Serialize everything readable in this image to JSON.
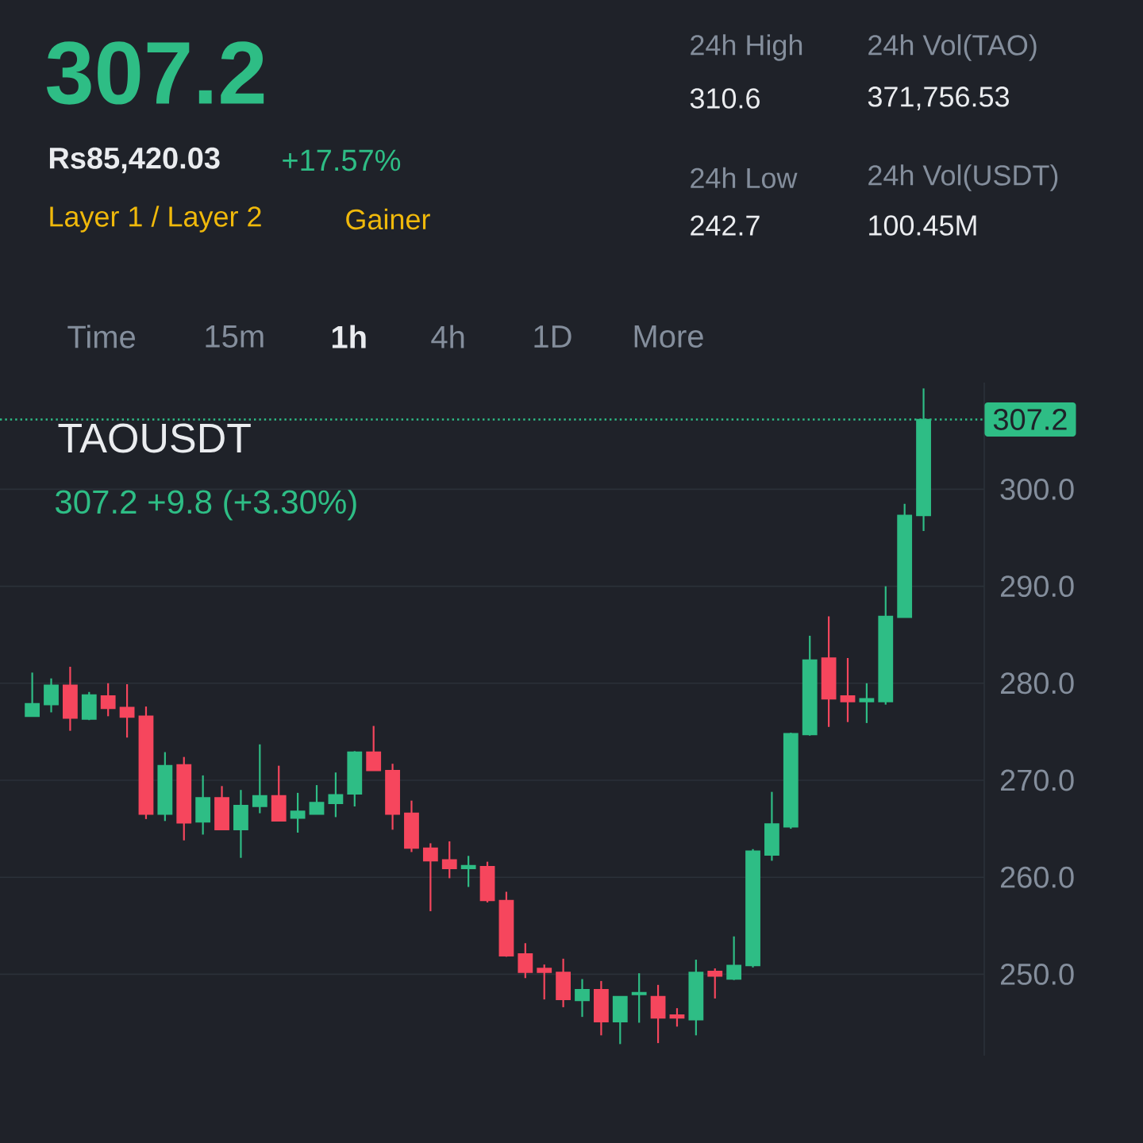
{
  "chart_data": {
    "type": "candlestick",
    "title": "TAOUSDT",
    "subtitle": "307.2  +9.8 (+3.30%)",
    "annotations": [
      "307.2",
      "Rs85,420.03",
      "+17.57%",
      "Layer 1 / Layer 2",
      "Gainer",
      "24h High",
      "310.6",
      "24h Vol(TAO)",
      "371,756.53",
      "24h Low",
      "242.7",
      "24h Vol(USDT)",
      "100.45M",
      "Time",
      "15m",
      "1h",
      "4h",
      "1D",
      "More"
    ],
    "categories": [
      null,
      null,
      null,
      null,
      null,
      null,
      null,
      null,
      null,
      null,
      null,
      null,
      null,
      null,
      null,
      null,
      null,
      null,
      null,
      null,
      null,
      null,
      null,
      null,
      null,
      null,
      null,
      null,
      null,
      null,
      null,
      null,
      null,
      null,
      null,
      null,
      null,
      null,
      null,
      null,
      null,
      null,
      null,
      null,
      null,
      null,
      null,
      null
    ],
    "ohlc": [
      [
        276.6,
        281.1,
        276.6,
        277.9
      ],
      [
        277.8,
        280.5,
        277.0,
        279.8
      ],
      [
        279.8,
        281.7,
        275.1,
        276.4
      ],
      [
        276.3,
        279.1,
        276.2,
        278.8
      ],
      [
        278.7,
        280.0,
        276.6,
        277.4
      ],
      [
        277.5,
        279.9,
        274.4,
        276.5
      ],
      [
        276.6,
        277.6,
        266.0,
        266.5
      ],
      [
        266.5,
        272.9,
        265.8,
        271.5
      ],
      [
        271.6,
        272.4,
        263.8,
        265.6
      ],
      [
        265.7,
        270.5,
        264.4,
        268.2
      ],
      [
        268.2,
        269.4,
        264.9,
        264.9
      ],
      [
        264.9,
        269.0,
        262.0,
        267.4
      ],
      [
        267.3,
        273.7,
        266.6,
        268.4
      ],
      [
        268.4,
        271.5,
        265.8,
        265.8
      ],
      [
        266.1,
        268.7,
        264.6,
        266.8
      ],
      [
        266.5,
        269.5,
        266.5,
        267.7
      ],
      [
        267.6,
        270.8,
        266.2,
        268.5
      ],
      [
        268.6,
        273.0,
        267.3,
        272.9
      ],
      [
        272.9,
        275.6,
        271.0,
        271.0
      ],
      [
        271.0,
        271.7,
        264.9,
        266.5
      ],
      [
        266.6,
        267.9,
        262.6,
        263.0
      ],
      [
        263.0,
        263.5,
        256.5,
        261.7
      ],
      [
        261.8,
        263.7,
        259.9,
        260.9
      ],
      [
        260.9,
        262.2,
        259.0,
        261.2
      ],
      [
        261.1,
        261.6,
        257.4,
        257.6
      ],
      [
        257.6,
        258.5,
        251.8,
        251.9
      ],
      [
        252.1,
        253.2,
        249.6,
        250.2
      ],
      [
        250.6,
        251.0,
        247.4,
        250.2
      ],
      [
        250.2,
        251.6,
        246.6,
        247.4
      ],
      [
        247.3,
        249.5,
        245.6,
        248.4
      ],
      [
        248.4,
        249.3,
        243.7,
        245.1
      ],
      [
        245.1,
        247.7,
        242.8,
        247.7
      ],
      [
        247.9,
        250.1,
        245.0,
        248.1
      ],
      [
        247.7,
        248.9,
        242.9,
        245.5
      ],
      [
        245.8,
        246.5,
        244.6,
        245.5
      ],
      [
        245.3,
        251.5,
        243.7,
        250.2
      ],
      [
        250.3,
        250.6,
        247.5,
        249.8
      ],
      [
        249.5,
        253.9,
        249.4,
        250.9
      ],
      [
        250.9,
        262.9,
        250.7,
        262.7
      ],
      [
        262.3,
        268.8,
        261.7,
        265.5
      ],
      [
        265.2,
        274.9,
        265.0,
        274.8
      ],
      [
        274.7,
        284.9,
        274.6,
        282.4
      ],
      [
        282.6,
        286.9,
        275.5,
        278.4
      ],
      [
        278.7,
        282.6,
        276.0,
        278.1
      ],
      [
        278.1,
        280.0,
        275.9,
        278.4
      ],
      [
        278.1,
        290.0,
        277.8,
        286.9
      ],
      [
        286.8,
        298.5,
        286.8,
        297.3
      ],
      [
        297.3,
        310.4,
        295.7,
        307.2
      ]
    ],
    "ylim": [
      241.6,
      311
    ],
    "yticks": [
      {
        "value": 250,
        "label": "250.0"
      },
      {
        "value": 260,
        "label": "260.0"
      },
      {
        "value": 270,
        "label": "270.0"
      },
      {
        "value": 280,
        "label": "280.0"
      },
      {
        "value": 290,
        "label": "290.0"
      },
      {
        "value": 300,
        "label": "300.0"
      }
    ],
    "ref_lines": [
      {
        "axis": "y",
        "value": 307.2,
        "label": "307.2",
        "color": "#2ebd85",
        "line_style": "dotted"
      }
    ],
    "grid": "y",
    "tick_labels": "y"
  }
}
